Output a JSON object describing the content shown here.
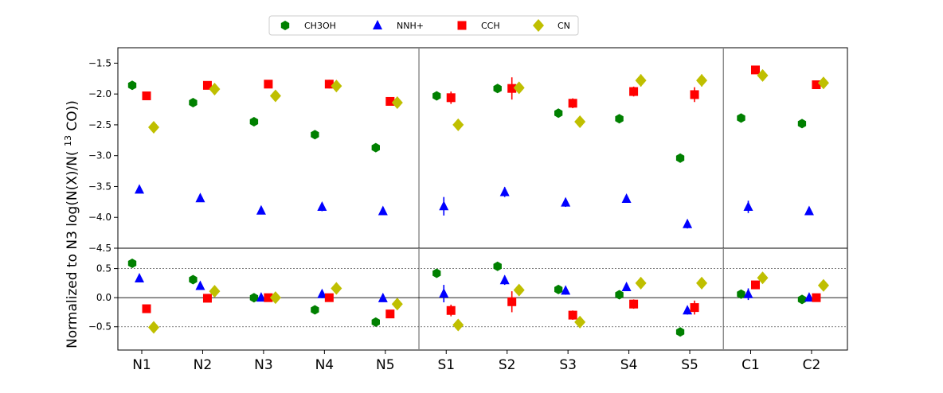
{
  "chart_data": {
    "type": "scatter",
    "ylabel_main": "Normalized to N3",
    "ylabel_pre": "log(N(X)/N(",
    "ylabel_sup": "13",
    "ylabel_post": "CO))",
    "categories": [
      "N1",
      "N2",
      "N3",
      "N4",
      "N5",
      "S1",
      "S2",
      "S3",
      "S4",
      "S5",
      "C1",
      "C2"
    ],
    "series": [
      {
        "name": "CH3OH",
        "color": "#008000",
        "marker": "hexagon",
        "top": [
          -1.86,
          -2.14,
          -2.45,
          -2.66,
          -2.87,
          -2.03,
          -1.91,
          -2.31,
          -2.4,
          -3.04,
          -2.39,
          -2.48
        ],
        "top_err": [
          0.03,
          0.03,
          0.03,
          0.07,
          0.03,
          0.07,
          0.07,
          0.07,
          0.03,
          0.07,
          0.03,
          0.03
        ],
        "bottom": [
          0.59,
          0.31,
          0.0,
          -0.21,
          -0.42,
          0.42,
          0.54,
          0.14,
          0.05,
          -0.59,
          0.06,
          -0.03
        ],
        "bottom_err": [
          0.03,
          0.03,
          0.03,
          0.07,
          0.03,
          0.07,
          0.07,
          0.07,
          0.03,
          0.07,
          0.03,
          0.03
        ]
      },
      {
        "name": "NNH+",
        "color": "#0000ff",
        "marker": "triangle",
        "top": [
          -3.55,
          -3.69,
          -3.89,
          -3.83,
          -3.9,
          -3.82,
          -3.59,
          -3.76,
          -3.7,
          -4.11,
          -3.83,
          -3.9
        ],
        "top_err": [
          0.03,
          0.03,
          0.03,
          0.07,
          0.03,
          0.15,
          0.08,
          0.07,
          0.05,
          0.07,
          0.1,
          0.03
        ],
        "bottom": [
          0.33,
          0.2,
          0.0,
          0.06,
          -0.01,
          0.07,
          0.3,
          0.12,
          0.18,
          -0.22,
          0.06,
          0.0
        ],
        "bottom_err": [
          0.03,
          0.03,
          0.03,
          0.07,
          0.03,
          0.15,
          0.08,
          0.07,
          0.05,
          0.07,
          0.1,
          0.03
        ]
      },
      {
        "name": "CCH",
        "color": "#ff0000",
        "marker": "square",
        "top": [
          -2.03,
          -1.86,
          -1.84,
          -1.84,
          -2.12,
          -2.06,
          -1.91,
          -2.15,
          -1.96,
          -2.01,
          -1.61,
          -1.85
        ],
        "top_err": [
          0.03,
          0.03,
          0.03,
          0.07,
          0.03,
          0.1,
          0.18,
          0.08,
          0.08,
          0.12,
          0.05,
          0.03
        ],
        "bottom": [
          -0.19,
          -0.01,
          0.0,
          0.0,
          -0.28,
          -0.22,
          -0.07,
          -0.3,
          -0.11,
          -0.17,
          0.22,
          0.0
        ],
        "bottom_err": [
          0.03,
          0.03,
          0.03,
          0.07,
          0.03,
          0.1,
          0.18,
          0.08,
          0.08,
          0.12,
          0.05,
          0.03
        ]
      },
      {
        "name": "CN",
        "color": "#bfbf00",
        "marker": "diamond",
        "top": [
          -2.54,
          -1.92,
          -2.03,
          -1.87,
          -2.14,
          -2.5,
          -1.9,
          -2.45,
          -1.78,
          -1.78,
          -1.7,
          -1.82
        ],
        "top_err": [
          0.03,
          0.03,
          0.03,
          0.05,
          0.03,
          0.05,
          0.07,
          0.05,
          0.1,
          0.1,
          0.03,
          0.03
        ],
        "bottom": [
          -0.51,
          0.11,
          0.0,
          0.16,
          -0.11,
          -0.47,
          0.13,
          -0.42,
          0.25,
          0.25,
          0.34,
          0.21
        ],
        "bottom_err": [
          0.03,
          0.03,
          0.03,
          0.05,
          0.03,
          0.05,
          0.07,
          0.05,
          0.1,
          0.1,
          0.03,
          0.03
        ]
      }
    ],
    "top_panel": {
      "ylim": [
        -4.5,
        -1.25
      ],
      "yticks": [
        -1.5,
        -2.0,
        -2.5,
        -3.0,
        -3.5,
        -4.0,
        -4.5
      ],
      "ytick_labels": [
        "−1.5",
        "−2.0",
        "−2.5",
        "−3.0",
        "−3.5",
        "−4.0",
        "−4.5"
      ]
    },
    "bottom_panel": {
      "ylim": [
        -0.9,
        0.85
      ],
      "yticks": [
        0.5,
        0.0,
        -0.5
      ],
      "ytick_labels": [
        "0.5",
        "0.0",
        "−0.5"
      ],
      "dashed_lines": [
        0.5,
        -0.5
      ],
      "solid_lines": [
        0.0
      ]
    },
    "group_separators_after": [
      4,
      9
    ],
    "legend_position": "top-center",
    "grid": false
  }
}
